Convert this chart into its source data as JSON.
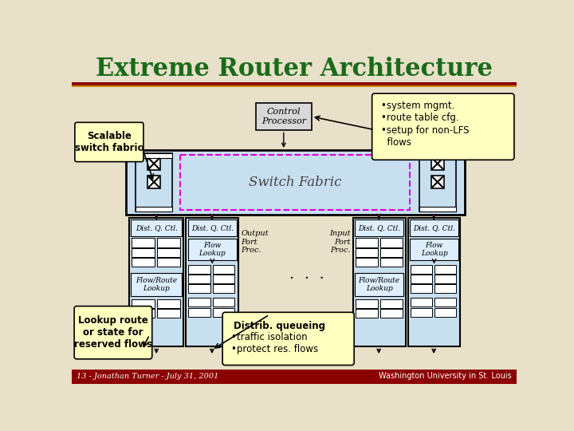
{
  "title": "Extreme Router Architecture",
  "title_color": "#1a6b1a",
  "title_fontsize": 22,
  "bg_color": "#e8e0c8",
  "footer_text": "13 - Jonathan Turner - July 31, 2001",
  "footer_logo_text": "Washington University in St. Louis",
  "footer_bg": "#8b0000",
  "switch_fabric_label": "Switch Fabric",
  "switch_fabric_bg": "#c8dff0",
  "dashed_box_color": "#dd00dd",
  "control_processor_label": "Control\nProcessor",
  "scalable_switch_label": "Scalable\nswitch fabric",
  "callout_right_lines": [
    "•system mgmt.",
    "•route table cfg.",
    "•setup for non-LFS",
    "  flows"
  ],
  "callout_left_label": "Lookup route\nor state for\nreserved flows",
  "callout_center_lines": [
    "Distrib. queueing",
    "•traffic isolation",
    "•protect res. flows"
  ],
  "dist_q_ctl_label": "Dist. Q. Ctl.",
  "flow_lookup_label": "Flow\nLookup",
  "flow_route_label": "Flow/Route\nLookup",
  "output_port_label": "Output\nPort\nProc.",
  "input_port_label": "Input\nPort\nProc.",
  "dots": "·  ·  ·",
  "card_bg": "#c8dff0",
  "module_bg": "#ddeeff",
  "callout_bg": "#ffffc0",
  "cp_bg": "#d8d8d8",
  "bar_color": "#8b0000",
  "bar_color2": "#cc8800"
}
